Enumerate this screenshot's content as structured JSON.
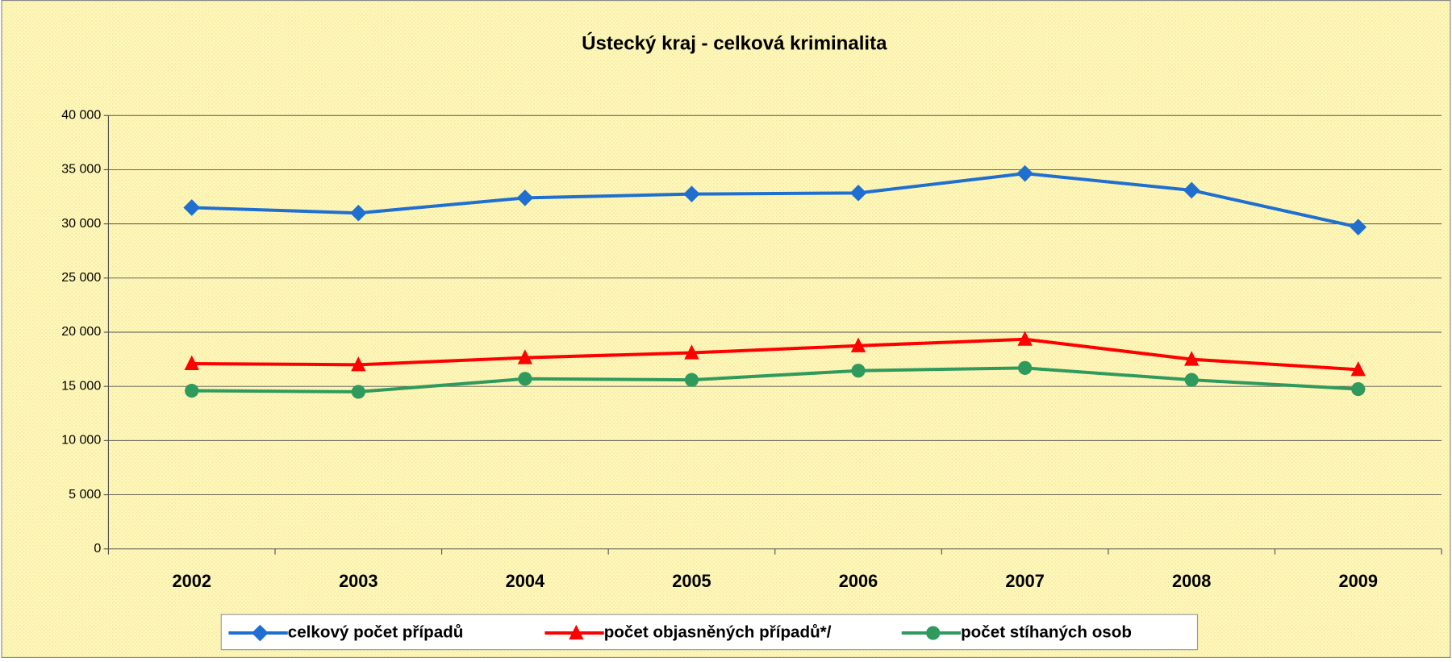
{
  "chart_data": {
    "type": "line",
    "title": "Ústecký kraj - celková kriminalita",
    "categories": [
      "2002",
      "2003",
      "2004",
      "2005",
      "2006",
      "2007",
      "2008",
      "2009"
    ],
    "series": [
      {
        "name": "celkový počet případů",
        "color": "#1f6fd0",
        "marker": "diamond",
        "values": [
          31500,
          31000,
          32400,
          32750,
          32850,
          34650,
          33100,
          29700
        ]
      },
      {
        "name": "počet objasněných případů*/",
        "color": "#ff0000",
        "marker": "triangle",
        "values": [
          17100,
          17000,
          17650,
          18100,
          18750,
          19350,
          17500,
          16550
        ]
      },
      {
        "name": "počet stíhaných osob",
        "color": "#2e9a5c",
        "marker": "circle",
        "values": [
          14600,
          14500,
          15700,
          15600,
          16450,
          16700,
          15600,
          14750
        ]
      }
    ],
    "ylim": [
      0,
      40000
    ],
    "yticks": [
      0,
      {
        "value": 5000,
        "label": "5 000"
      },
      {
        "value": 10000,
        "label": "10 000"
      },
      {
        "value": 15000,
        "label": "15 000"
      },
      {
        "value": 20000,
        "label": "20 000"
      },
      {
        "value": 25000,
        "label": "25 000"
      },
      {
        "value": 30000,
        "label": "30 000"
      },
      {
        "value": 35000,
        "label": "35 000"
      },
      {
        "value": 40000,
        "label": "40 000"
      }
    ],
    "grid": true,
    "legend": "bottom"
  }
}
